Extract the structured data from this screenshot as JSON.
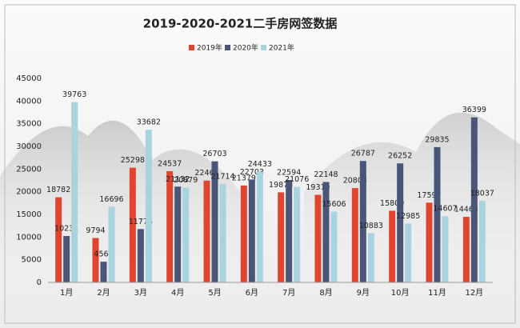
{
  "chart_data": {
    "type": "bar",
    "title": "2019-2020-2021二手房网签数据",
    "categories": [
      "1月",
      "2月",
      "3月",
      "4月",
      "5月",
      "6月",
      "7月",
      "8月",
      "9月",
      "10月",
      "11月",
      "12月"
    ],
    "series": [
      {
        "name": "2019年",
        "color": "#e0452f",
        "values": [
          18782,
          9794,
          25298,
          24537,
          22462,
          21379,
          19873,
          19319,
          20803,
          15809,
          17597,
          14463
        ]
      },
      {
        "name": "2020年",
        "color": "#4a5578",
        "values": [
          10231,
          4565,
          11776,
          21132,
          26703,
          22703,
          22594,
          22148,
          26787,
          26252,
          29835,
          36399
        ]
      },
      {
        "name": "2021年",
        "color": "#a9d3df",
        "values": [
          39763,
          16696,
          33682,
          20879,
          21714,
          24433,
          21076,
          15606,
          10883,
          12985,
          14607,
          18037
        ]
      }
    ],
    "ylim": [
      0,
      45000
    ],
    "yticks": [
      0,
      5000,
      10000,
      15000,
      20000,
      25000,
      30000,
      35000,
      40000,
      45000
    ],
    "grid": false,
    "legend": "top"
  }
}
